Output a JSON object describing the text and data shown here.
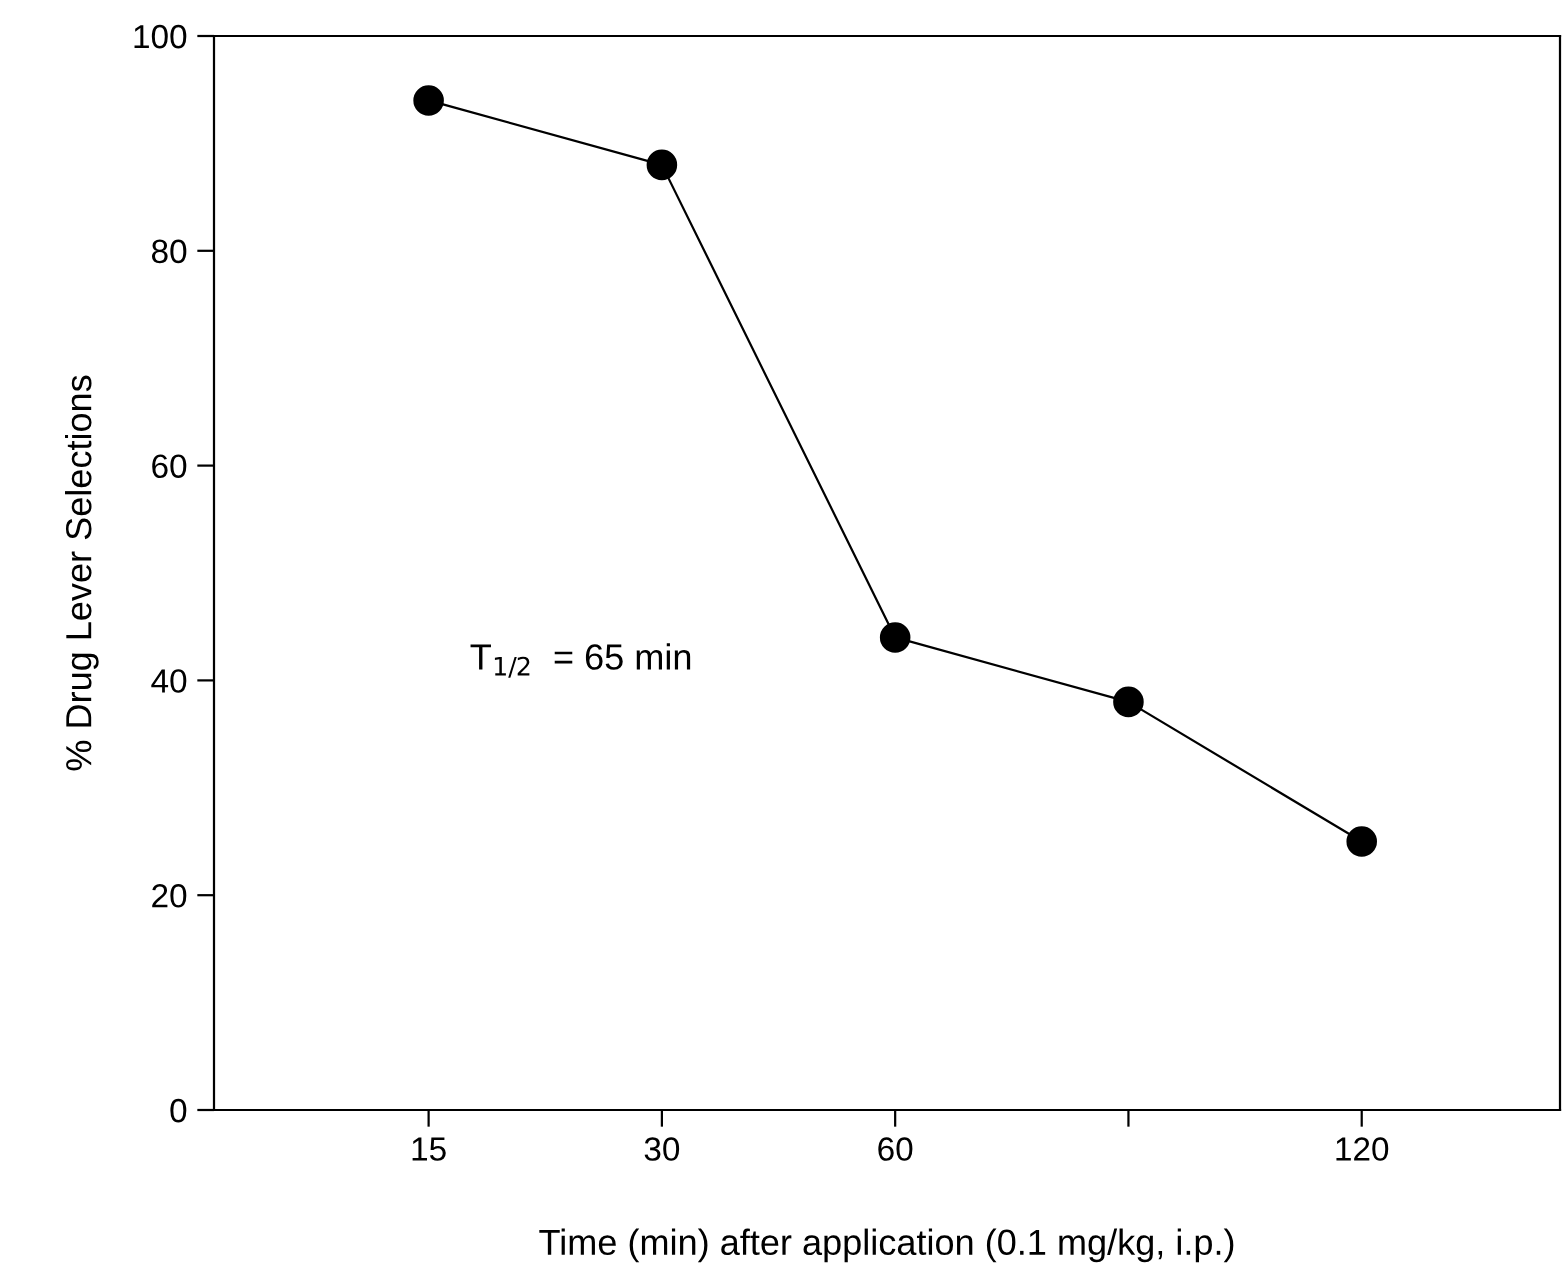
{
  "chart_data": {
    "type": "line",
    "xlabel": "Time (min) after application (0.1 mg/kg, i.p.)",
    "ylabel": "% Drug Lever Selections",
    "categories": [
      "15",
      "30",
      "60",
      null,
      "120"
    ],
    "series": [
      {
        "color": "#000000",
        "values": [
          94,
          88,
          44,
          38,
          25
        ]
      }
    ],
    "ylim": [
      0,
      100
    ],
    "yticks": [
      0,
      20,
      40,
      60,
      80,
      100
    ],
    "marker": "circle",
    "line_style": "solid",
    "grid": false,
    "legend": false,
    "annotations": [
      "T$_{1/2}$  = 65 min"
    ]
  }
}
